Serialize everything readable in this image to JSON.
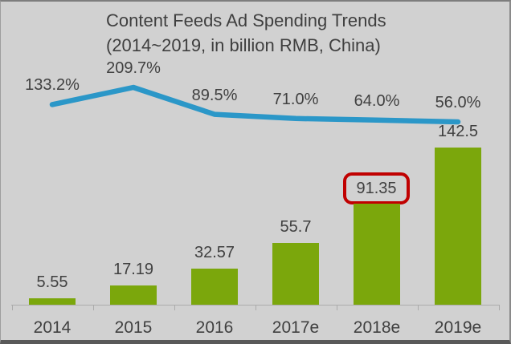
{
  "title": {
    "line1": "Content Feeds Ad Spending Trends",
    "line2": "(2014~2019, in billion RMB, China)"
  },
  "chart_data": {
    "type": "bar+line combo",
    "title": "Content Feeds Ad Spending Trends (2014~2019, in billion RMB, China)",
    "categories": [
      "2014",
      "2015",
      "2016",
      "2017e",
      "2018e",
      "2019e"
    ],
    "series": [
      {
        "name": "ad-spending-billion-rmb",
        "type": "bar",
        "values": [
          5.55,
          17.19,
          32.57,
          55.7,
          91.35,
          142.5
        ],
        "labels": [
          "5.55",
          "17.19",
          "32.57",
          "55.7",
          "91.35",
          "142.5"
        ],
        "color": "#7ba70c"
      },
      {
        "name": "yoy-growth-percent",
        "type": "line",
        "values": [
          133.2,
          209.7,
          89.5,
          71.0,
          64.0,
          56.0
        ],
        "labels": [
          "133.2%",
          "209.7%",
          "89.5%",
          "71.0%",
          "64.0%",
          "56.0%"
        ],
        "color": "#2b97c8"
      }
    ],
    "highlight": {
      "category": "2018e",
      "label": "91.35",
      "box_color": "#c00000"
    },
    "axis": {
      "baseline_visible": true,
      "gridlines": false,
      "axis_color": "#ababab"
    },
    "legend": "none",
    "colors": {
      "background": "#d1d1d1",
      "text": "#404040",
      "title_text": "#3f3f3f"
    }
  }
}
